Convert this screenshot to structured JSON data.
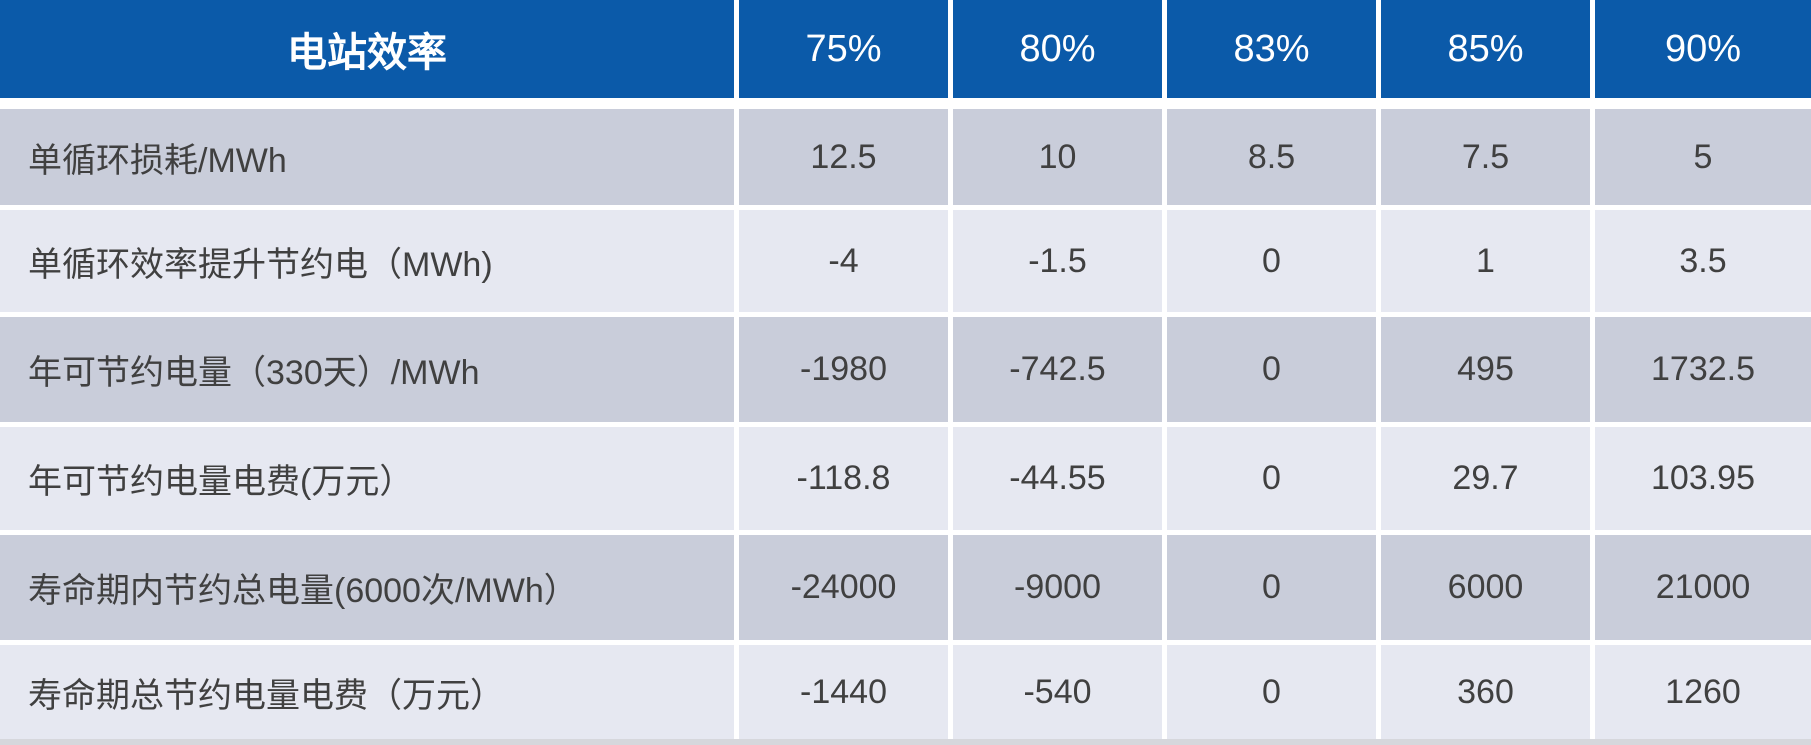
{
  "colors": {
    "header_blue": "#0b5aa9",
    "row_dark": "#c9cdda",
    "row_light": "#e6e8f1",
    "grid_gap_white": "#ffffff",
    "text_dark": "#404040",
    "header_text": "#ffffff",
    "bottom_strip": "#d6d7dc"
  },
  "chart_data": {
    "type": "table",
    "title": "",
    "columns": [
      "电站效率",
      "75%",
      "80%",
      "83%",
      "85%",
      "90%"
    ],
    "rows": [
      {
        "label": "单循环损耗/MWh",
        "values": [
          12.5,
          10,
          8.5,
          7.5,
          5
        ]
      },
      {
        "label": "单循环效率提升节约电（MWh)",
        "values": [
          -4,
          -1.5,
          0,
          1,
          3.5
        ]
      },
      {
        "label": "年可节约电量（330天）/MWh",
        "values": [
          -1980,
          -742.5,
          0,
          495,
          1732.5
        ]
      },
      {
        "label": "年可节约电量电费(万元）",
        "values": [
          -118.8,
          -44.55,
          0,
          29.7,
          103.95
        ]
      },
      {
        "label": "寿命期内节约总电量(6000次/MWh）",
        "values": [
          -24000,
          -9000,
          0,
          6000,
          21000
        ]
      },
      {
        "label": "寿命期总节约电量电费（万元）",
        "values": [
          -1440,
          -540,
          0,
          360,
          1260
        ]
      }
    ]
  }
}
